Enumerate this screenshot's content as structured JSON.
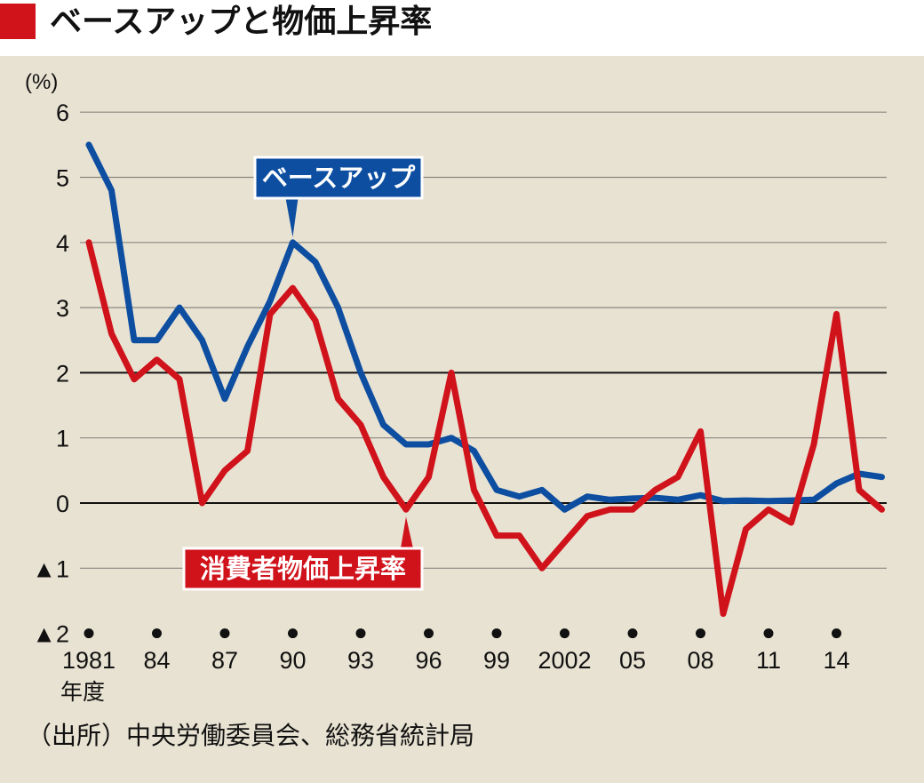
{
  "title": "ベースアップと物価上昇率",
  "colors": {
    "accent": "#d0121b",
    "background": "#e8e2d2",
    "base_up": "#0d4ea1",
    "cpi": "#d0121b"
  },
  "source": "（出所）中央労働委員会、総務省統計局",
  "chart_data": {
    "type": "line",
    "ylabel": "(%)",
    "xlabel_unit": "年度",
    "ylim": [
      -2,
      6
    ],
    "yticks": [
      6,
      5,
      4,
      3,
      2,
      1,
      0,
      -1,
      -2
    ],
    "ytick_labels": [
      "6",
      "5",
      "4",
      "3",
      "2",
      "1",
      "0",
      "▲1",
      "▲2"
    ],
    "x": [
      1981,
      1982,
      1983,
      1984,
      1985,
      1986,
      1987,
      1988,
      1989,
      1990,
      1991,
      1992,
      1993,
      1994,
      1995,
      1996,
      1997,
      1998,
      1999,
      2000,
      2001,
      2002,
      2003,
      2004,
      2005,
      2006,
      2007,
      2008,
      2009,
      2010,
      2011,
      2012,
      2013,
      2014,
      2015,
      2016
    ],
    "xticks": [
      1981,
      1984,
      1987,
      1990,
      1993,
      1996,
      1999,
      2002,
      2005,
      2008,
      2011,
      2014
    ],
    "xtick_labels": [
      "1981",
      "84",
      "87",
      "90",
      "93",
      "96",
      "99",
      "2002",
      "05",
      "08",
      "11",
      "14"
    ],
    "series": [
      {
        "name": "ベースアップ",
        "values": [
          5.5,
          4.8,
          2.5,
          2.5,
          3.0,
          2.5,
          1.6,
          2.4,
          3.1,
          4.0,
          3.7,
          3.0,
          2.0,
          1.2,
          0.9,
          0.9,
          1.0,
          0.8,
          0.2,
          0.1,
          0.2,
          -0.1,
          0.1,
          0.05,
          0.07,
          0.08,
          0.05,
          0.12,
          0.03,
          0.04,
          0.03,
          0.04,
          0.05,
          0.3,
          0.45,
          0.4
        ]
      },
      {
        "name": "消費者物価上昇率",
        "values": [
          4.0,
          2.6,
          1.9,
          2.2,
          1.9,
          0.0,
          0.5,
          0.8,
          2.9,
          3.3,
          2.8,
          1.6,
          1.2,
          0.4,
          -0.1,
          0.4,
          2.0,
          0.2,
          -0.5,
          -0.5,
          -1.0,
          -0.6,
          -0.2,
          -0.1,
          -0.1,
          0.2,
          0.4,
          1.1,
          -1.7,
          -0.4,
          -0.1,
          -0.3,
          0.9,
          2.9,
          0.2,
          -0.1
        ]
      }
    ]
  }
}
